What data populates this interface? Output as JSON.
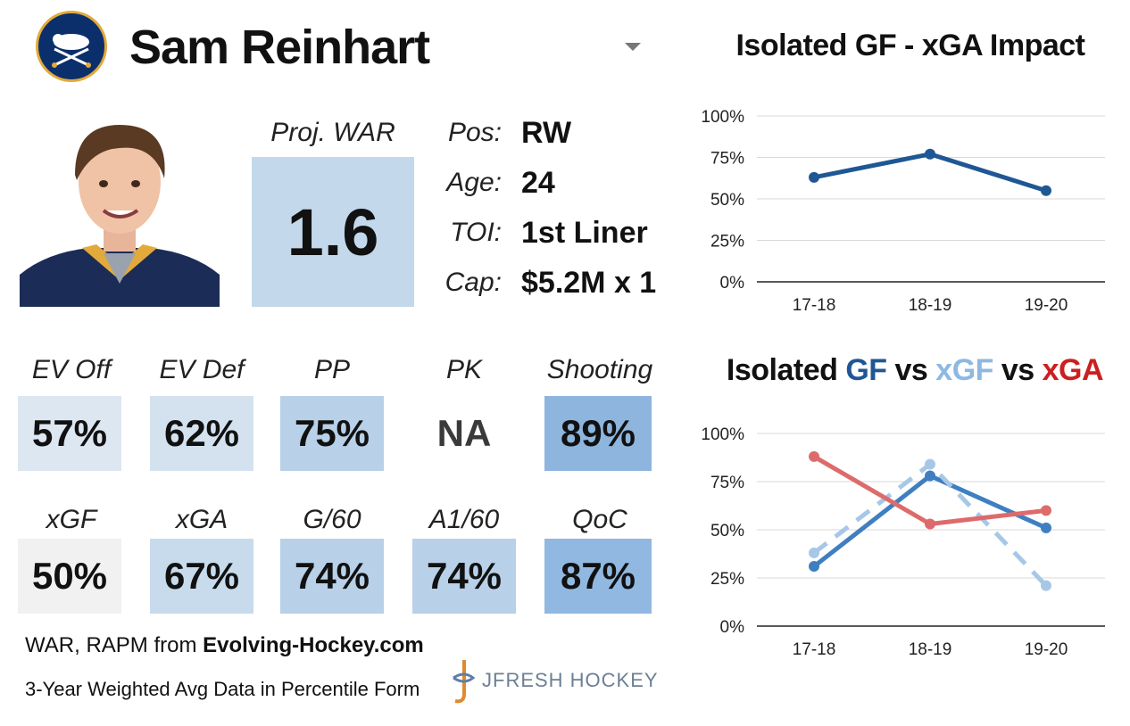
{
  "player": {
    "name": "Sam Reinhart",
    "war_label": "Proj. WAR",
    "war_value": "1.6",
    "bio": [
      {
        "key": "Pos:",
        "value": "RW"
      },
      {
        "key": "Age:",
        "value": "24"
      },
      {
        "key": "TOI:",
        "value": "1st Liner"
      },
      {
        "key": "Cap:",
        "value": "$5.2M x 1"
      }
    ]
  },
  "metrics": [
    {
      "label": "EV Off",
      "value": "57%",
      "color": "#dde7f1"
    },
    {
      "label": "EV Def",
      "value": "62%",
      "color": "#d4e2ef"
    },
    {
      "label": "PP",
      "value": "75%",
      "color": "#b8d0e8"
    },
    {
      "label": "PK",
      "value": "NA",
      "color": "#ffffff"
    },
    {
      "label": "Shooting",
      "value": "89%",
      "color": "#8db5de"
    },
    {
      "label": "xGF",
      "value": "50%",
      "color": "#f1f1f1"
    },
    {
      "label": "xGA",
      "value": "67%",
      "color": "#c8dbec"
    },
    {
      "label": "G/60",
      "value": "74%",
      "color": "#b8d0e8"
    },
    {
      "label": "A1/60",
      "value": "74%",
      "color": "#b8d0e8"
    },
    {
      "label": "QoC",
      "value": "87%",
      "color": "#91b8e0"
    }
  ],
  "footer": {
    "line1_prefix": "WAR, RAPM from ",
    "line1_bold": "Evolving-Hockey.com",
    "line2": "3-Year Weighted Avg Data in Percentile Form",
    "brand": "JFRESH HOCKEY"
  },
  "chart_data": [
    {
      "type": "line",
      "title": "Isolated GF - xGA Impact",
      "categories": [
        "17-18",
        "18-19",
        "19-20"
      ],
      "series": [
        {
          "name": "GF - xGA",
          "values": [
            63,
            77,
            55
          ],
          "color": "#1f5795",
          "dash": false
        }
      ],
      "yticks": [
        "100%",
        "75%",
        "50%",
        "25%",
        "0%"
      ],
      "ylim": [
        0,
        100
      ],
      "grid": true
    },
    {
      "type": "line",
      "title_parts": [
        {
          "text": "Isolated ",
          "color": "#111111"
        },
        {
          "text": "GF",
          "color": "#1f5795"
        },
        {
          "text": " vs ",
          "color": "#111111"
        },
        {
          "text": "xGF",
          "color": "#8db8e2"
        },
        {
          "text": " vs ",
          "color": "#111111"
        },
        {
          "text": "xGA",
          "color": "#cc1f1f"
        }
      ],
      "categories": [
        "17-18",
        "18-19",
        "19-20"
      ],
      "series": [
        {
          "name": "GF",
          "values": [
            31,
            78,
            51
          ],
          "color": "#3f7fc1",
          "dash": false
        },
        {
          "name": "xGF",
          "values": [
            38,
            84,
            21
          ],
          "color": "#a7c7e7",
          "dash": true
        },
        {
          "name": "xGA",
          "values": [
            88,
            53,
            60
          ],
          "color": "#dd6b6b",
          "dash": false
        }
      ],
      "yticks": [
        "100%",
        "75%",
        "50%",
        "25%",
        "0%"
      ],
      "ylim": [
        0,
        100
      ],
      "grid": true
    }
  ]
}
